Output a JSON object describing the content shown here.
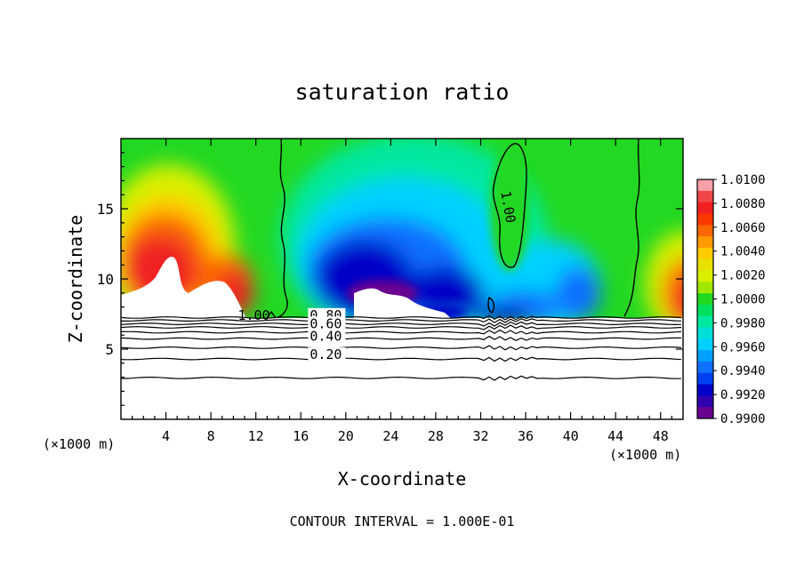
{
  "chart_data": {
    "type": "heatmap",
    "title": "saturation ratio",
    "xlabel": "X-coordinate",
    "ylabel": "Z-coordinate",
    "x_unit_left": "(×1000 m)",
    "x_unit_right": "(×1000 m)",
    "footer": "CONTOUR INTERVAL = 1.000E-01",
    "xlim": [
      0,
      50
    ],
    "ylim": [
      0,
      20
    ],
    "x_ticks": [
      4,
      8,
      12,
      16,
      20,
      24,
      28,
      32,
      36,
      40,
      44,
      48
    ],
    "x_tick_labels": [
      "4",
      "8",
      "12",
      "16",
      "20",
      "24",
      "28",
      "32",
      "36",
      "40",
      "44",
      "48"
    ],
    "y_ticks": [
      5,
      10,
      15
    ],
    "y_tick_labels": [
      "5",
      "10",
      "15"
    ],
    "colorbar": {
      "labels": [
        "1.0100",
        "1.0080",
        "1.0060",
        "1.0040",
        "1.0020",
        "1.0000",
        "0.9980",
        "0.9960",
        "0.9940",
        "0.9920",
        "0.9900"
      ],
      "colors": [
        "#f7a0a8",
        "#f02020",
        "#fa6600",
        "#ffcc00",
        "#d8f000",
        "#22d822",
        "#00e8a0",
        "#00d0ff",
        "#1070ff",
        "#0000c8",
        "#6a0090"
      ],
      "min": 0.99,
      "max": 1.01
    },
    "contour_labels": [
      {
        "text": "1.00",
        "x": 10.4,
        "z": 7.1
      },
      {
        "text": "0.80",
        "x": 16.8,
        "z": 7.1
      },
      {
        "text": "0.60",
        "x": 16.8,
        "z": 6.5
      },
      {
        "text": "0.40",
        "x": 16.8,
        "z": 5.6
      },
      {
        "text": "0.20",
        "x": 16.8,
        "z": 4.3
      },
      {
        "text": "1.00",
        "x": 33.8,
        "z": 16.2
      }
    ],
    "contour_levels_subsaturated": [
      0.9,
      0.8,
      0.7,
      0.6,
      0.5,
      0.4,
      0.3,
      0.2,
      0.1
    ],
    "contour_level_heights_z": [
      7.25,
      7.05,
      6.8,
      6.55,
      6.2,
      5.75,
      5.1,
      4.3,
      2.95
    ],
    "saturated_layer_base_z": 7.3
  }
}
